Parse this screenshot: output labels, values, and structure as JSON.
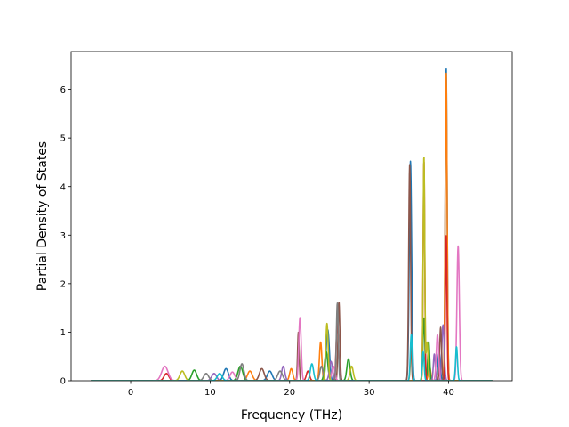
{
  "chart_data": {
    "type": "line",
    "title": "",
    "xlabel": "Frequency (THz)",
    "ylabel": "Partial Density of States",
    "xlim": [
      -7.5,
      48.0
    ],
    "ylim": [
      0,
      6.78
    ],
    "xticks": [
      0,
      10,
      20,
      30,
      40
    ],
    "yticks": [
      0,
      1,
      2,
      3,
      4,
      5,
      6
    ],
    "grid": false,
    "legend": "none",
    "palette": [
      "#1f77b4",
      "#ff7f0e",
      "#2ca02c",
      "#d62728",
      "#9467bd",
      "#8c564b",
      "#e377c2",
      "#7f7f7f",
      "#bcbd22",
      "#17becf"
    ],
    "x_range": [
      -5,
      45.5
    ],
    "series": [
      {
        "color": "#1f77b4",
        "peaks": [
          [
            35.2,
            4.52,
            0.15
          ],
          [
            39.7,
            6.44,
            0.12
          ],
          [
            24.8,
            1.05,
            0.2
          ],
          [
            12.0,
            0.25,
            0.3
          ],
          [
            17.5,
            0.2,
            0.3
          ],
          [
            38.8,
            0.6,
            0.15
          ]
        ]
      },
      {
        "color": "#ff7f0e",
        "peaks": [
          [
            39.7,
            6.35,
            0.12
          ],
          [
            23.9,
            0.8,
            0.15
          ],
          [
            35.3,
            0.6,
            0.12
          ],
          [
            15.0,
            0.2,
            0.3
          ],
          [
            20.2,
            0.25,
            0.2
          ],
          [
            37.6,
            0.3,
            0.15
          ]
        ]
      },
      {
        "color": "#2ca02c",
        "peaks": [
          [
            36.9,
            1.3,
            0.12
          ],
          [
            24.6,
            0.6,
            0.2
          ],
          [
            13.8,
            0.3,
            0.3
          ],
          [
            27.4,
            0.45,
            0.2
          ],
          [
            37.5,
            0.8,
            0.12
          ],
          [
            8.0,
            0.22,
            0.3
          ]
        ]
      },
      {
        "color": "#d62728",
        "peaks": [
          [
            36.9,
            4.55,
            0.1
          ],
          [
            26.0,
            1.2,
            0.15
          ],
          [
            39.7,
            3.0,
            0.1
          ],
          [
            22.3,
            0.2,
            0.2
          ],
          [
            4.5,
            0.15,
            0.3
          ]
        ]
      },
      {
        "color": "#9467bd",
        "peaks": [
          [
            39.3,
            1.15,
            0.15
          ],
          [
            38.2,
            0.55,
            0.12
          ],
          [
            25.2,
            0.4,
            0.2
          ],
          [
            19.2,
            0.3,
            0.2
          ],
          [
            10.5,
            0.15,
            0.3
          ]
        ]
      },
      {
        "color": "#8c564b",
        "peaks": [
          [
            26.2,
            1.62,
            0.12
          ],
          [
            35.1,
            4.45,
            0.12
          ],
          [
            21.1,
            1.0,
            0.1
          ],
          [
            39.0,
            1.1,
            0.12
          ],
          [
            16.5,
            0.25,
            0.3
          ]
        ]
      },
      {
        "color": "#e377c2",
        "peaks": [
          [
            41.2,
            2.78,
            0.15
          ],
          [
            21.3,
            1.3,
            0.15
          ],
          [
            4.3,
            0.3,
            0.4
          ],
          [
            38.6,
            0.95,
            0.15
          ],
          [
            12.8,
            0.18,
            0.3
          ],
          [
            25.5,
            0.3,
            0.2
          ]
        ]
      },
      {
        "color": "#7f7f7f",
        "peaks": [
          [
            26.0,
            1.6,
            0.12
          ],
          [
            14.0,
            0.35,
            0.25
          ],
          [
            9.5,
            0.15,
            0.3
          ],
          [
            18.8,
            0.2,
            0.3
          ],
          [
            24.0,
            0.3,
            0.2
          ]
        ]
      },
      {
        "color": "#bcbd22",
        "peaks": [
          [
            36.9,
            4.65,
            0.1
          ],
          [
            24.7,
            1.18,
            0.15
          ],
          [
            37.3,
            0.8,
            0.12
          ],
          [
            27.8,
            0.3,
            0.2
          ],
          [
            6.5,
            0.2,
            0.3
          ]
        ]
      },
      {
        "color": "#17becf",
        "peaks": [
          [
            35.3,
            0.95,
            0.12
          ],
          [
            41.0,
            0.7,
            0.12
          ],
          [
            22.8,
            0.35,
            0.2
          ],
          [
            11.2,
            0.15,
            0.3
          ],
          [
            36.8,
            0.6,
            0.12
          ]
        ]
      }
    ]
  }
}
